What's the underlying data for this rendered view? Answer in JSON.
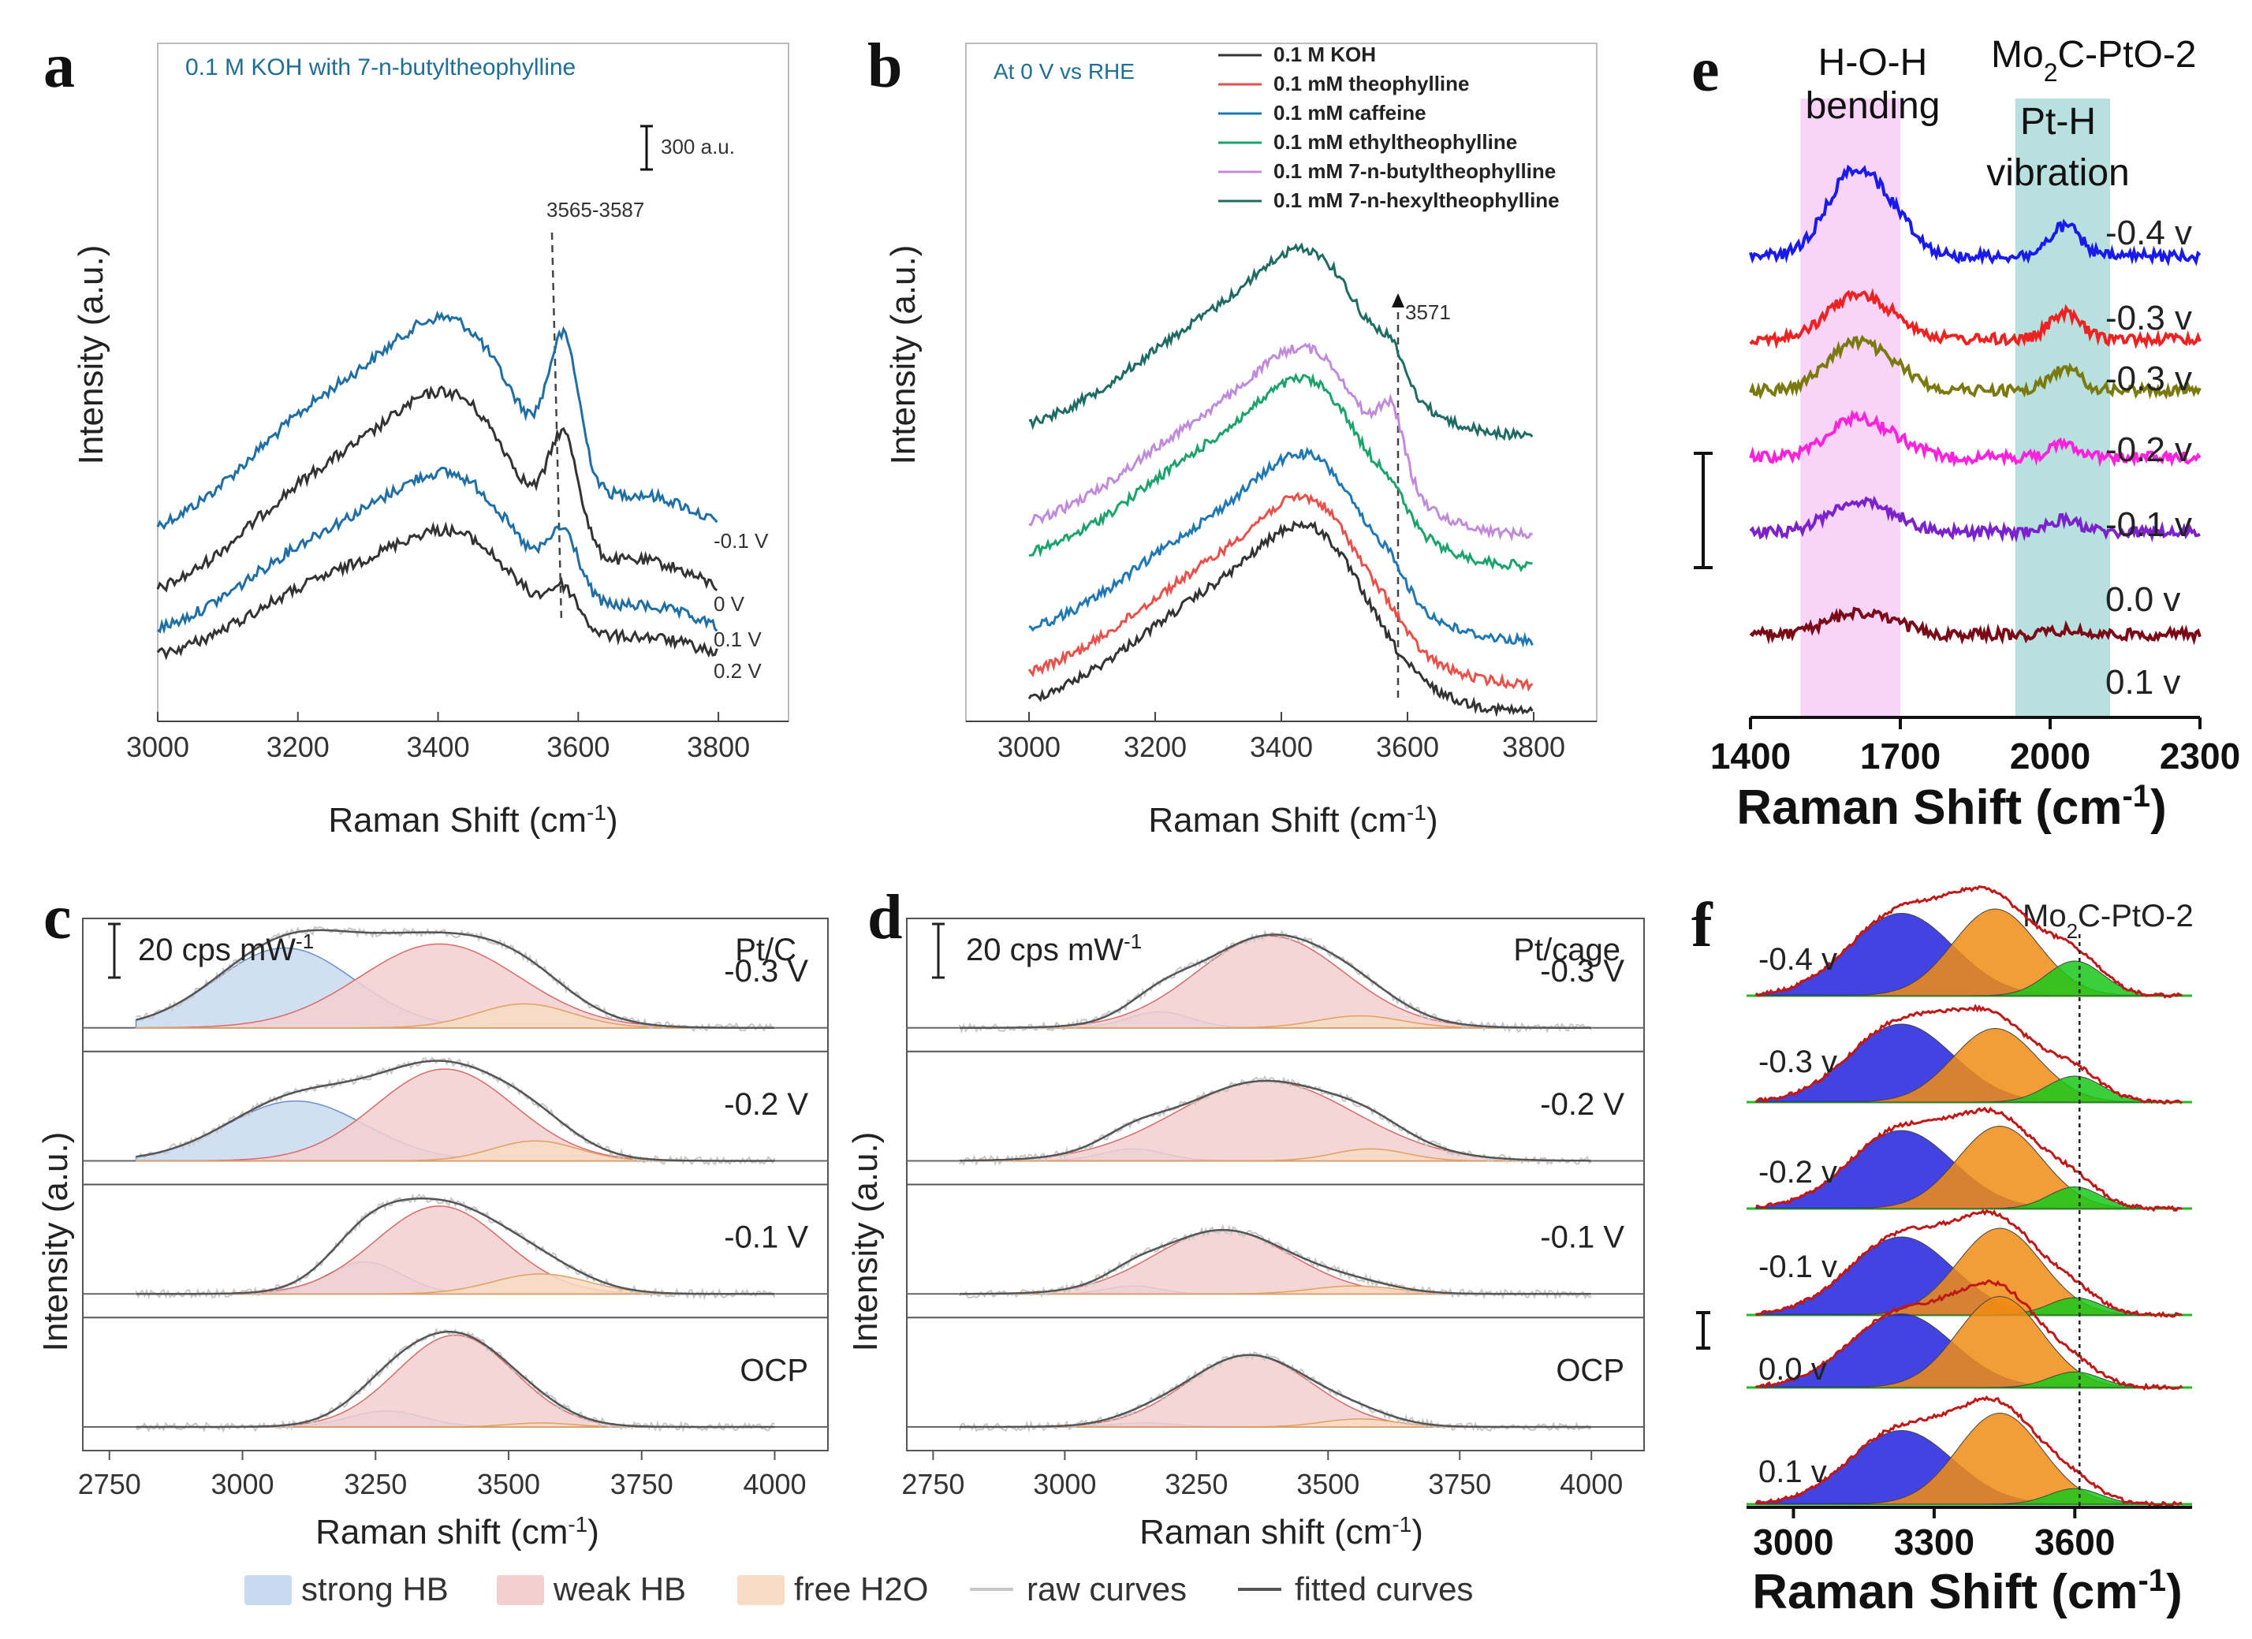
{
  "chart_data": [
    {
      "id": "a",
      "type": "line",
      "panel_label": "a",
      "title": "0.1 M KOH with 7-n-butyltheophylline",
      "xlabel": "Raman Shift (cm-1)",
      "ylabel": "Intensity (a.u.)",
      "xlim": [
        3000,
        3900
      ],
      "xticks": [
        3000,
        3200,
        3400,
        3600,
        3800
      ],
      "scale_bar": "300 a.u.",
      "annotation": "3565-3587",
      "series": [
        {
          "name": "-0.1 V",
          "color": "#1f6fa5",
          "offset": 3,
          "amp": 1.0,
          "peak_h": 0.55
        },
        {
          "name": "0 V",
          "color": "#333333",
          "offset": 2,
          "amp": 0.95,
          "peak_h": 0.45
        },
        {
          "name": "0.1 V",
          "color": "#1f6fa5",
          "offset": 1,
          "amp": 0.75,
          "peak_h": 0.32
        },
        {
          "name": "0.2 V",
          "color": "#333333",
          "offset": 0,
          "amp": 0.6,
          "peak_h": 0.25
        }
      ]
    },
    {
      "id": "b",
      "type": "line",
      "panel_label": "b",
      "title": "At 0 V vs RHE",
      "xlabel": "Raman Shift (cm-1)",
      "ylabel": "Intensity (a.u.)",
      "xlim": [
        2900,
        3900
      ],
      "xticks": [
        3000,
        3200,
        3400,
        3600,
        3800
      ],
      "annotation": "3571",
      "series": [
        {
          "name": "0.1 M KOH",
          "color": "#333333",
          "offset": 0,
          "peak_h": 0.0
        },
        {
          "name": "0.1 mM theophylline",
          "color": "#e8504a",
          "offset": 1,
          "peak_h": 0.05
        },
        {
          "name": "0.1 mM caffeine",
          "color": "#1f78b4",
          "offset": 2,
          "peak_h": 0.1
        },
        {
          "name": "0.1 mM ethyltheophylline",
          "color": "#1aa36b",
          "offset": 3,
          "peak_h": 0.1
        },
        {
          "name": "0.1 mM 7-n-butyltheophylline",
          "color": "#c18bdb",
          "offset": 4,
          "peak_h": 0.35
        },
        {
          "name": "0.1 mM 7-n-hexyltheophylline",
          "color": "#1d6b63",
          "offset": 5,
          "peak_h": 0.15
        }
      ]
    },
    {
      "id": "c",
      "type": "area",
      "panel_label": "c",
      "catalyst": "Pt/C",
      "scale_bar": "20 cps mW-1",
      "xlabel": "Raman shift (cm-1)",
      "ylabel": "Intensity (a.u.)",
      "xlim": [
        2700,
        4100
      ],
      "xticks": [
        2750,
        3000,
        3250,
        3500,
        3750,
        4000
      ],
      "series": [
        {
          "name": "-0.3 V",
          "strong": [
            3080,
            130,
            1.0
          ],
          "weak": [
            3370,
            150,
            1.05
          ],
          "free": [
            3530,
            90,
            0.3
          ]
        },
        {
          "name": "-0.2 V",
          "strong": [
            3100,
            130,
            0.75
          ],
          "weak": [
            3380,
            130,
            1.15
          ],
          "free": [
            3550,
            80,
            0.25
          ]
        },
        {
          "name": "-0.1 V",
          "strong": [
            3230,
            70,
            0.4
          ],
          "weak": [
            3370,
            120,
            1.1
          ],
          "free": [
            3560,
            90,
            0.25
          ]
        },
        {
          "name": "OCP",
          "strong": [
            3270,
            70,
            0.2
          ],
          "weak": [
            3400,
            110,
            1.15
          ],
          "free": [
            3560,
            60,
            0.05
          ]
        }
      ]
    },
    {
      "id": "d",
      "type": "area",
      "panel_label": "d",
      "catalyst": "Pt/cage",
      "scale_bar": "20 cps mW-1",
      "xlabel": "Raman shift (cm-1)",
      "ylabel": "Intensity (a.u.)",
      "xlim": [
        2700,
        4100
      ],
      "xticks": [
        2750,
        3000,
        3250,
        3500,
        3750,
        4000
      ],
      "series": [
        {
          "name": "-0.3 V",
          "strong": [
            3180,
            60,
            0.2
          ],
          "weak": [
            3390,
            140,
            1.15
          ],
          "free": [
            3560,
            80,
            0.15
          ]
        },
        {
          "name": "-0.2 V",
          "strong": [
            3130,
            60,
            0.15
          ],
          "weak": [
            3380,
            170,
            1.0
          ],
          "free": [
            3580,
            70,
            0.15
          ]
        },
        {
          "name": "-0.1 V",
          "strong": [
            3130,
            50,
            0.1
          ],
          "weak": [
            3300,
            130,
            0.8
          ],
          "free": [
            3550,
            80,
            0.1
          ]
        },
        {
          "name": "OCP",
          "strong": [
            3150,
            60,
            0.05
          ],
          "weak": [
            3350,
            120,
            0.9
          ],
          "free": [
            3560,
            70,
            0.1
          ]
        }
      ]
    },
    {
      "id": "e",
      "type": "line",
      "panel_label": "e",
      "catalyst": "Mo2C-PtO-2",
      "xlabel": "Raman Shift (cm-1)",
      "xlim": [
        1400,
        2300
      ],
      "xticks": [
        1400,
        1700,
        2000,
        2300
      ],
      "bands": [
        {
          "name": "H-O-H bending",
          "from": 1500,
          "to": 1700,
          "color": "#f5c6f5"
        },
        {
          "name": "Pt-H vibration",
          "from": 1930,
          "to": 2120,
          "color": "#9fd6d4"
        }
      ],
      "series": [
        {
          "name": "-0.4 v",
          "color": "#1a1aee",
          "hoh": 1.0,
          "pth": 0.35
        },
        {
          "name": "-0.3 v",
          "color": "#ee2222",
          "hoh": 0.5,
          "pth": 0.3
        },
        {
          "name": "-0.3 v",
          "color": "#7a7a10",
          "hoh": 0.55,
          "pth": 0.25
        },
        {
          "name": "-0.2 v",
          "color": "#ff22dd",
          "hoh": 0.45,
          "pth": 0.15
        },
        {
          "name": "-0.1 v",
          "color": "#7a22cc",
          "hoh": 0.35,
          "pth": 0.15
        },
        {
          "name": "0.0 v",
          "color": "#7a0a18",
          "hoh": 0.25,
          "pth": 0.05
        }
      ],
      "extra_label": "0.1 v"
    },
    {
      "id": "f",
      "type": "area",
      "panel_label": "f",
      "catalyst": "Mo2C-PtO-2",
      "xlabel": "Raman Shift (cm-1)",
      "xlim": [
        2900,
        3850
      ],
      "xticks": [
        3000,
        3300,
        3600
      ],
      "series": [
        {
          "name": "-0.4 v",
          "blue": [
            3230,
            110,
            0.95
          ],
          "orange": [
            3430,
            90,
            1.0
          ],
          "green": [
            3600,
            60,
            0.4
          ]
        },
        {
          "name": "-0.3 v",
          "blue": [
            3230,
            110,
            0.9
          ],
          "orange": [
            3430,
            90,
            0.85
          ],
          "green": [
            3600,
            60,
            0.3
          ]
        },
        {
          "name": "-0.2 v",
          "blue": [
            3230,
            110,
            0.9
          ],
          "orange": [
            3440,
            90,
            0.95
          ],
          "green": [
            3600,
            55,
            0.25
          ]
        },
        {
          "name": "-0.1 v",
          "blue": [
            3230,
            110,
            0.9
          ],
          "orange": [
            3440,
            90,
            1.0
          ],
          "green": [
            3600,
            55,
            0.2
          ]
        },
        {
          "name": "0.0 v",
          "blue": [
            3230,
            110,
            0.85
          ],
          "orange": [
            3440,
            90,
            1.05
          ],
          "green": [
            3600,
            55,
            0.18
          ]
        },
        {
          "name": "0.1 v",
          "blue": [
            3230,
            110,
            0.85
          ],
          "orange": [
            3440,
            90,
            1.05
          ],
          "green": [
            3600,
            55,
            0.18
          ]
        }
      ]
    }
  ],
  "legend_cd": [
    {
      "label": "strong HB",
      "color": "#c8daf0"
    },
    {
      "label": "weak HB",
      "color": "#f3cfcf"
    },
    {
      "label": "free H2O",
      "color": "#f8dcc4"
    },
    {
      "label": "raw curves",
      "color": "#c8c8c8"
    },
    {
      "label": "fitted curves",
      "color": "#555555"
    }
  ]
}
